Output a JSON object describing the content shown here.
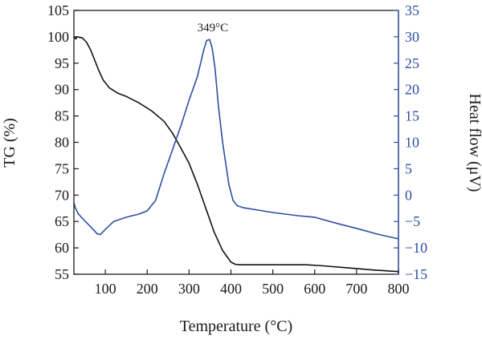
{
  "chart_data": {
    "type": "line",
    "xlabel": "Temperature (°C)",
    "ylabel_left": "TG (%)",
    "ylabel_right": "Heat flow (μV)",
    "x_ticks": [
      "100",
      "200",
      "300",
      "400",
      "500",
      "600",
      "700",
      "800"
    ],
    "x_tick_values": [
      100,
      200,
      300,
      400,
      500,
      600,
      700,
      800
    ],
    "xlim": [
      25,
      800
    ],
    "y_left_ticks": [
      "55",
      "60",
      "65",
      "70",
      "75",
      "80",
      "85",
      "90",
      "95",
      "100",
      "105"
    ],
    "y_left_tick_values": [
      55,
      60,
      65,
      70,
      75,
      80,
      85,
      90,
      95,
      100,
      105
    ],
    "ylim_left": [
      55,
      105
    ],
    "y_right_ticks": [
      "−15",
      "−10",
      "−5",
      "0",
      "5",
      "10",
      "15",
      "20",
      "25",
      "30",
      "35"
    ],
    "y_right_tick_values": [
      -15,
      -10,
      -5,
      0,
      5,
      10,
      15,
      20,
      25,
      30,
      35
    ],
    "ylim_right": [
      -15,
      35
    ],
    "grid": false,
    "annotations": [
      {
        "text": "349°C",
        "x": 349,
        "y_right": 29.5
      }
    ],
    "series": [
      {
        "axis": "left",
        "color": "#111111",
        "points": [
          [
            25,
            100
          ],
          [
            30,
            99.6
          ],
          [
            32,
            100
          ],
          [
            45,
            99.8
          ],
          [
            55,
            99
          ],
          [
            65,
            97.5
          ],
          [
            75,
            95.5
          ],
          [
            85,
            93.5
          ],
          [
            95,
            91.8
          ],
          [
            110,
            90.3
          ],
          [
            130,
            89.3
          ],
          [
            150,
            88.7
          ],
          [
            180,
            87.5
          ],
          [
            210,
            86
          ],
          [
            240,
            84
          ],
          [
            260,
            81.8
          ],
          [
            280,
            79
          ],
          [
            300,
            76
          ],
          [
            320,
            72
          ],
          [
            340,
            67.5
          ],
          [
            360,
            63
          ],
          [
            380,
            59.5
          ],
          [
            400,
            57.3
          ],
          [
            410,
            56.9
          ],
          [
            420,
            56.8
          ],
          [
            500,
            56.8
          ],
          [
            580,
            56.8
          ],
          [
            620,
            56.6
          ],
          [
            680,
            56.2
          ],
          [
            740,
            55.8
          ],
          [
            800,
            55.5
          ]
        ]
      },
      {
        "axis": "right",
        "color": "#2e4fa0",
        "points": [
          [
            25,
            -1.5
          ],
          [
            28,
            -2.3
          ],
          [
            35,
            -3.5
          ],
          [
            50,
            -4.8
          ],
          [
            65,
            -6
          ],
          [
            80,
            -7.3
          ],
          [
            88,
            -7.5
          ],
          [
            100,
            -6.5
          ],
          [
            120,
            -5
          ],
          [
            150,
            -4.2
          ],
          [
            180,
            -3.6
          ],
          [
            200,
            -3
          ],
          [
            220,
            -1
          ],
          [
            240,
            4
          ],
          [
            260,
            8.5
          ],
          [
            280,
            13
          ],
          [
            300,
            18
          ],
          [
            320,
            22.5
          ],
          [
            335,
            27.5
          ],
          [
            342,
            29.3
          ],
          [
            349,
            29.5
          ],
          [
            355,
            28
          ],
          [
            362,
            24
          ],
          [
            370,
            17
          ],
          [
            380,
            10
          ],
          [
            395,
            2
          ],
          [
            405,
            -1
          ],
          [
            415,
            -2
          ],
          [
            430,
            -2.4
          ],
          [
            500,
            -3.3
          ],
          [
            560,
            -3.9
          ],
          [
            600,
            -4.2
          ],
          [
            650,
            -5.3
          ],
          [
            700,
            -6.3
          ],
          [
            750,
            -7.4
          ],
          [
            800,
            -8.3
          ]
        ]
      }
    ]
  }
}
